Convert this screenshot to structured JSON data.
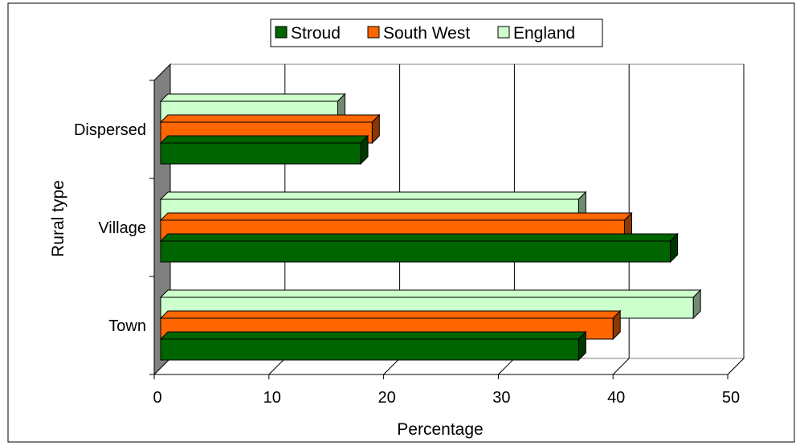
{
  "chart_data": {
    "type": "bar",
    "orientation": "horizontal",
    "categories": [
      "Town",
      "Village",
      "Dispersed"
    ],
    "series": [
      {
        "name": "Stroud",
        "values": [
          37,
          45,
          18
        ],
        "color": "#006400"
      },
      {
        "name": "South West",
        "values": [
          40,
          41,
          19
        ],
        "color": "#ff6600"
      },
      {
        "name": "England",
        "values": [
          47,
          37,
          16
        ],
        "color": "#ccffcc"
      }
    ],
    "xlabel": "Percentage",
    "ylabel": "Rural type",
    "xlim": [
      0,
      50
    ],
    "xticks": [
      "0",
      "10",
      "20",
      "30",
      "40",
      "50"
    ],
    "grid": "vertical",
    "legend_position": "top",
    "style": "3d"
  }
}
